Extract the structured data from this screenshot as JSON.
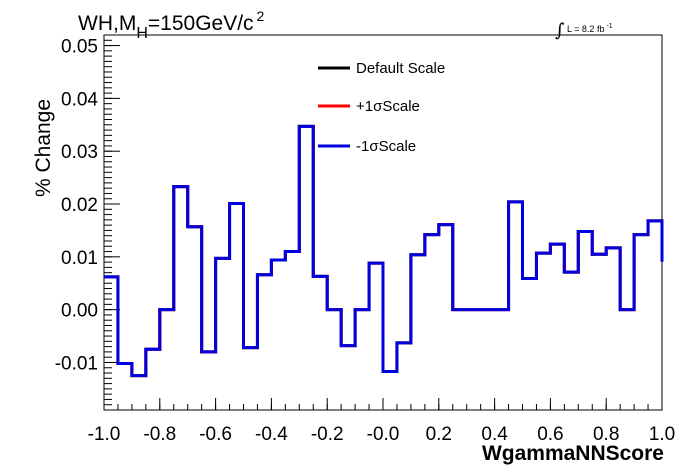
{
  "chart_data": {
    "type": "line",
    "title": {
      "main": "WH,M",
      "sub": "H",
      "rest": "=150GeV/c",
      "sup": "2"
    },
    "annotation": {
      "integral": "∫",
      "lumi": "L = 8.2 fb",
      "lumi_sup": "-1"
    },
    "xlabel": "WgammaNNScore",
    "ylabel": "% Change",
    "xlim": [
      -1.0,
      1.0
    ],
    "ylim": [
      -0.019,
      0.052
    ],
    "x_ticks": [
      "-1.0",
      "-0.8",
      "-0.6",
      "-0.4",
      "-0.2",
      "-0.0",
      "0.2",
      "0.4",
      "0.6",
      "0.8",
      "1.0"
    ],
    "y_ticks": [
      "-0.01",
      "0.00",
      "0.01",
      "0.02",
      "0.03",
      "0.04",
      "0.05"
    ],
    "grid": false,
    "legend_position": "top-center",
    "bin_edges": [
      -1.0,
      -0.95,
      -0.9,
      -0.85,
      -0.8,
      -0.75,
      -0.7,
      -0.65,
      -0.6,
      -0.55,
      -0.5,
      -0.45,
      -0.4,
      -0.35,
      -0.3,
      -0.25,
      -0.2,
      -0.15,
      -0.1,
      -0.05,
      0.0,
      0.05,
      0.1,
      0.15,
      0.2,
      0.25,
      0.3,
      0.35,
      0.4,
      0.45,
      0.5,
      0.55,
      0.6,
      0.65,
      0.7,
      0.75,
      0.8,
      0.85,
      0.9,
      0.95,
      1.0
    ],
    "series": [
      {
        "name": "Default Scale",
        "color": "#000000",
        "values": [
          0.0062,
          -0.0102,
          -0.0125,
          -0.0075,
          0.0,
          0.0233,
          0.0157,
          -0.008,
          0.0097,
          0.0201,
          -0.0072,
          0.0066,
          0.0094,
          0.011,
          0.0347,
          0.0063,
          0.0,
          -0.0068,
          0.0,
          0.0088,
          -0.0117,
          -0.0063,
          0.0104,
          0.0142,
          0.0161,
          0.0,
          0.0,
          0.0,
          0.0,
          0.0204,
          0.0059,
          0.0107,
          0.0124,
          0.0071,
          0.0148,
          0.0105,
          0.0117,
          0.0,
          0.0142,
          0.0168,
          0.0091
        ]
      },
      {
        "name": "+1σScale",
        "color": "#ff0000",
        "values": [
          0.0062,
          -0.0102,
          -0.0125,
          -0.0075,
          0.0,
          0.0233,
          0.0157,
          -0.008,
          0.0097,
          0.0201,
          -0.0072,
          0.0066,
          0.0094,
          0.011,
          0.0347,
          0.0063,
          0.0,
          -0.0068,
          0.0,
          0.0088,
          -0.0117,
          -0.0063,
          0.0104,
          0.0142,
          0.0161,
          0.0,
          0.0,
          0.0,
          0.0,
          0.0204,
          0.0059,
          0.0107,
          0.0124,
          0.0071,
          0.0148,
          0.0105,
          0.0117,
          0.0,
          0.0142,
          0.0168,
          0.0091
        ]
      },
      {
        "name": "-1σScale",
        "color": "#0000e0",
        "values": [
          0.0062,
          -0.0102,
          -0.0125,
          -0.0075,
          0.0,
          0.0233,
          0.0157,
          -0.008,
          0.0097,
          0.0201,
          -0.0072,
          0.0066,
          0.0094,
          0.011,
          0.0347,
          0.0063,
          0.0,
          -0.0068,
          0.0,
          0.0088,
          -0.0117,
          -0.0063,
          0.0104,
          0.0142,
          0.0161,
          0.0,
          0.0,
          0.0,
          0.0,
          0.0204,
          0.0059,
          0.0107,
          0.0124,
          0.0071,
          0.0148,
          0.0105,
          0.0117,
          0.0,
          0.0142,
          0.0168,
          0.0091
        ]
      }
    ]
  }
}
